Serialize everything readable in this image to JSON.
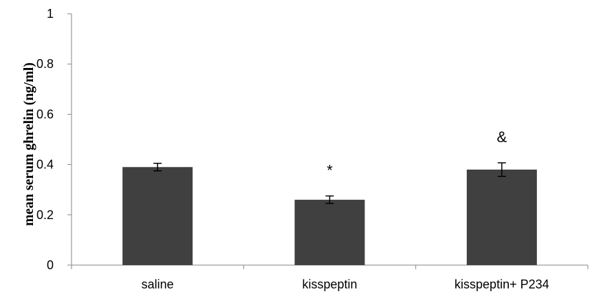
{
  "chart_data": {
    "type": "bar",
    "title": "",
    "xlabel": "",
    "ylabel": "mean serum ghrelin (ng/ml)",
    "categories": [
      "saline",
      "kisspeptin",
      "kisspeptin+ P234"
    ],
    "values": [
      0.39,
      0.26,
      0.38
    ],
    "errors": [
      0.015,
      0.015,
      0.027
    ],
    "annotations": [
      "",
      "*",
      "&"
    ],
    "ylim": [
      0,
      1
    ],
    "yticks": [
      "0",
      "0.2",
      "0.4",
      "0.6",
      "0.8",
      "1"
    ],
    "grid": false,
    "legend": "none",
    "bar_color": "#404040"
  }
}
